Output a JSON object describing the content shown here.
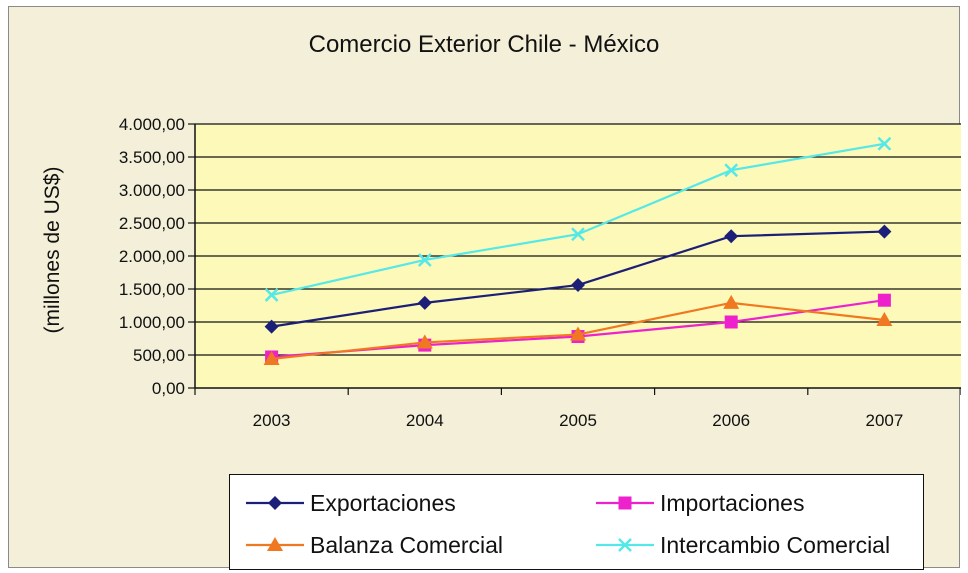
{
  "chart_data": {
    "type": "line",
    "title": "Comercio Exterior Chile - México",
    "xlabel": "",
    "ylabel": "(millones de US$)",
    "ylim": [
      0,
      4000
    ],
    "ytick_step": 500,
    "ytick_labels": [
      "0,00",
      "500,00",
      "1.000,00",
      "1.500,00",
      "2.000,00",
      "2.500,00",
      "3.000,00",
      "3.500,00",
      "4.000,00"
    ],
    "categories": [
      "2003",
      "2004",
      "2005",
      "2006",
      "2007"
    ],
    "grid": true,
    "legend_position": "bottom",
    "series": [
      {
        "name": "Exportaciones",
        "color": "#1b1f78",
        "marker": "diamond",
        "values": [
          930,
          1290,
          1560,
          2300,
          2370
        ]
      },
      {
        "name": "Importaciones",
        "color": "#ee22cc",
        "marker": "square",
        "values": [
          470,
          650,
          780,
          1000,
          1330
        ]
      },
      {
        "name": "Balanza Comercial",
        "color": "#f07820",
        "marker": "triangle",
        "values": [
          440,
          690,
          810,
          1290,
          1030
        ]
      },
      {
        "name": "Intercambio Comercial",
        "color": "#55e8e8",
        "marker": "x",
        "values": [
          1410,
          1940,
          2330,
          3300,
          3700
        ]
      }
    ]
  }
}
